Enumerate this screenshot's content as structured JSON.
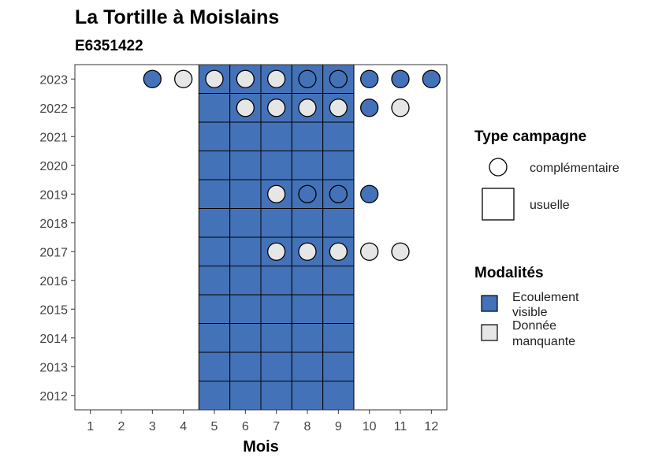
{
  "chart_data": {
    "type": "heatmap",
    "title": "La Tortille à Moislains",
    "subtitle": "E6351422",
    "xlabel": "Mois",
    "ylabel": "",
    "x_ticks": [
      1,
      2,
      3,
      4,
      5,
      6,
      7,
      8,
      9,
      10,
      11,
      12
    ],
    "y_ticks": [
      2012,
      2013,
      2014,
      2015,
      2016,
      2017,
      2018,
      2019,
      2020,
      2021,
      2022,
      2023
    ],
    "xlim": [
      0.5,
      12.5
    ],
    "ylim": [
      2011.5,
      2023.5
    ],
    "grid": false,
    "colors": {
      "ecoulement_visible": "#4472b8",
      "donnee_manquante": "#e6e6e6"
    },
    "legend": {
      "placement": "right",
      "type_campagne": {
        "title": "Type campagne",
        "items": [
          {
            "label": "complémentaire",
            "shape": "circle"
          },
          {
            "label": "usuelle",
            "shape": "square"
          }
        ]
      },
      "modalites": {
        "title": "Modalités",
        "items": [
          {
            "label_line1": "Ecoulement",
            "label_line2": "visible",
            "color": "#4472b8"
          },
          {
            "label_line1": "Donnée",
            "label_line2": "manquante",
            "color": "#e6e6e6"
          }
        ]
      }
    },
    "usuelle": [
      {
        "month": 5,
        "year": 2012,
        "modalite": "Ecoulement visible"
      },
      {
        "month": 6,
        "year": 2012,
        "modalite": "Ecoulement visible"
      },
      {
        "month": 7,
        "year": 2012,
        "modalite": "Ecoulement visible"
      },
      {
        "month": 8,
        "year": 2012,
        "modalite": "Ecoulement visible"
      },
      {
        "month": 9,
        "year": 2012,
        "modalite": "Ecoulement visible"
      },
      {
        "month": 5,
        "year": 2013,
        "modalite": "Ecoulement visible"
      },
      {
        "month": 6,
        "year": 2013,
        "modalite": "Ecoulement visible"
      },
      {
        "month": 7,
        "year": 2013,
        "modalite": "Ecoulement visible"
      },
      {
        "month": 8,
        "year": 2013,
        "modalite": "Ecoulement visible"
      },
      {
        "month": 9,
        "year": 2013,
        "modalite": "Ecoulement visible"
      },
      {
        "month": 5,
        "year": 2014,
        "modalite": "Ecoulement visible"
      },
      {
        "month": 6,
        "year": 2014,
        "modalite": "Ecoulement visible"
      },
      {
        "month": 7,
        "year": 2014,
        "modalite": "Ecoulement visible"
      },
      {
        "month": 8,
        "year": 2014,
        "modalite": "Ecoulement visible"
      },
      {
        "month": 9,
        "year": 2014,
        "modalite": "Ecoulement visible"
      },
      {
        "month": 5,
        "year": 2015,
        "modalite": "Ecoulement visible"
      },
      {
        "month": 6,
        "year": 2015,
        "modalite": "Ecoulement visible"
      },
      {
        "month": 7,
        "year": 2015,
        "modalite": "Ecoulement visible"
      },
      {
        "month": 8,
        "year": 2015,
        "modalite": "Ecoulement visible"
      },
      {
        "month": 9,
        "year": 2015,
        "modalite": "Ecoulement visible"
      },
      {
        "month": 5,
        "year": 2016,
        "modalite": "Ecoulement visible"
      },
      {
        "month": 6,
        "year": 2016,
        "modalite": "Ecoulement visible"
      },
      {
        "month": 7,
        "year": 2016,
        "modalite": "Ecoulement visible"
      },
      {
        "month": 8,
        "year": 2016,
        "modalite": "Ecoulement visible"
      },
      {
        "month": 9,
        "year": 2016,
        "modalite": "Ecoulement visible"
      },
      {
        "month": 5,
        "year": 2017,
        "modalite": "Ecoulement visible"
      },
      {
        "month": 6,
        "year": 2017,
        "modalite": "Ecoulement visible"
      },
      {
        "month": 7,
        "year": 2017,
        "modalite": "Ecoulement visible"
      },
      {
        "month": 8,
        "year": 2017,
        "modalite": "Ecoulement visible"
      },
      {
        "month": 9,
        "year": 2017,
        "modalite": "Ecoulement visible"
      },
      {
        "month": 5,
        "year": 2018,
        "modalite": "Ecoulement visible"
      },
      {
        "month": 6,
        "year": 2018,
        "modalite": "Ecoulement visible"
      },
      {
        "month": 7,
        "year": 2018,
        "modalite": "Ecoulement visible"
      },
      {
        "month": 8,
        "year": 2018,
        "modalite": "Ecoulement visible"
      },
      {
        "month": 9,
        "year": 2018,
        "modalite": "Ecoulement visible"
      },
      {
        "month": 5,
        "year": 2019,
        "modalite": "Ecoulement visible"
      },
      {
        "month": 6,
        "year": 2019,
        "modalite": "Ecoulement visible"
      },
      {
        "month": 7,
        "year": 2019,
        "modalite": "Ecoulement visible"
      },
      {
        "month": 8,
        "year": 2019,
        "modalite": "Ecoulement visible"
      },
      {
        "month": 9,
        "year": 2019,
        "modalite": "Ecoulement visible"
      },
      {
        "month": 5,
        "year": 2020,
        "modalite": "Ecoulement visible"
      },
      {
        "month": 6,
        "year": 2020,
        "modalite": "Ecoulement visible"
      },
      {
        "month": 7,
        "year": 2020,
        "modalite": "Ecoulement visible"
      },
      {
        "month": 8,
        "year": 2020,
        "modalite": "Ecoulement visible"
      },
      {
        "month": 9,
        "year": 2020,
        "modalite": "Ecoulement visible"
      },
      {
        "month": 5,
        "year": 2021,
        "modalite": "Ecoulement visible"
      },
      {
        "month": 6,
        "year": 2021,
        "modalite": "Ecoulement visible"
      },
      {
        "month": 7,
        "year": 2021,
        "modalite": "Ecoulement visible"
      },
      {
        "month": 8,
        "year": 2021,
        "modalite": "Ecoulement visible"
      },
      {
        "month": 9,
        "year": 2021,
        "modalite": "Ecoulement visible"
      },
      {
        "month": 5,
        "year": 2022,
        "modalite": "Ecoulement visible"
      },
      {
        "month": 6,
        "year": 2022,
        "modalite": "Ecoulement visible"
      },
      {
        "month": 7,
        "year": 2022,
        "modalite": "Ecoulement visible"
      },
      {
        "month": 8,
        "year": 2022,
        "modalite": "Ecoulement visible"
      },
      {
        "month": 9,
        "year": 2022,
        "modalite": "Ecoulement visible"
      },
      {
        "month": 5,
        "year": 2023,
        "modalite": "Ecoulement visible"
      },
      {
        "month": 6,
        "year": 2023,
        "modalite": "Ecoulement visible"
      },
      {
        "month": 7,
        "year": 2023,
        "modalite": "Ecoulement visible"
      },
      {
        "month": 8,
        "year": 2023,
        "modalite": "Ecoulement visible"
      },
      {
        "month": 9,
        "year": 2023,
        "modalite": "Ecoulement visible"
      }
    ],
    "complementaire": [
      {
        "month": 3,
        "year": 2023,
        "modalite": "Ecoulement visible"
      },
      {
        "month": 4,
        "year": 2023,
        "modalite": "Donnée manquante"
      },
      {
        "month": 5,
        "year": 2023,
        "modalite": "Donnée manquante"
      },
      {
        "month": 6,
        "year": 2023,
        "modalite": "Donnée manquante"
      },
      {
        "month": 7,
        "year": 2023,
        "modalite": "Donnée manquante"
      },
      {
        "month": 8,
        "year": 2023,
        "modalite": "Ecoulement visible"
      },
      {
        "month": 9,
        "year": 2023,
        "modalite": "Ecoulement visible"
      },
      {
        "month": 10,
        "year": 2023,
        "modalite": "Ecoulement visible"
      },
      {
        "month": 11,
        "year": 2023,
        "modalite": "Ecoulement visible"
      },
      {
        "month": 12,
        "year": 2023,
        "modalite": "Ecoulement visible"
      },
      {
        "month": 6,
        "year": 2022,
        "modalite": "Donnée manquante"
      },
      {
        "month": 7,
        "year": 2022,
        "modalite": "Donnée manquante"
      },
      {
        "month": 8,
        "year": 2022,
        "modalite": "Donnée manquante"
      },
      {
        "month": 9,
        "year": 2022,
        "modalite": "Donnée manquante"
      },
      {
        "month": 10,
        "year": 2022,
        "modalite": "Ecoulement visible"
      },
      {
        "month": 11,
        "year": 2022,
        "modalite": "Donnée manquante"
      },
      {
        "month": 7,
        "year": 2019,
        "modalite": "Donnée manquante"
      },
      {
        "month": 8,
        "year": 2019,
        "modalite": "Ecoulement visible"
      },
      {
        "month": 9,
        "year": 2019,
        "modalite": "Ecoulement visible"
      },
      {
        "month": 10,
        "year": 2019,
        "modalite": "Ecoulement visible"
      },
      {
        "month": 7,
        "year": 2017,
        "modalite": "Donnée manquante"
      },
      {
        "month": 8,
        "year": 2017,
        "modalite": "Donnée manquante"
      },
      {
        "month": 9,
        "year": 2017,
        "modalite": "Donnée manquante"
      },
      {
        "month": 10,
        "year": 2017,
        "modalite": "Donnée manquante"
      },
      {
        "month": 11,
        "year": 2017,
        "modalite": "Donnée manquante"
      }
    ]
  }
}
